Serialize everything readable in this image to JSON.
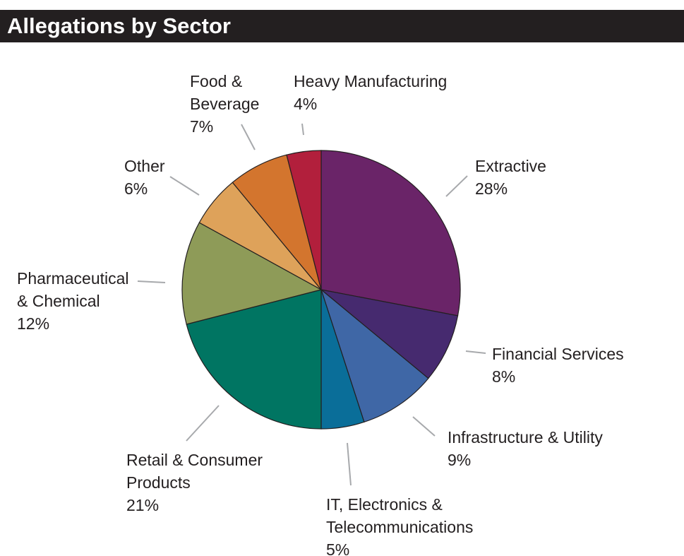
{
  "header": {
    "title": "Allegations by Sector"
  },
  "chart_data": {
    "type": "pie",
    "title": "Allegations by Sector",
    "unit": "%",
    "start_angle_deg": 0,
    "direction": "clockwise",
    "slices": [
      {
        "name": "Extractive",
        "label_lines": [
          "Extractive",
          "28%"
        ],
        "value": 28,
        "color": "#6a2468"
      },
      {
        "name": "Financial Services",
        "label_lines": [
          "Financial Services",
          "8%"
        ],
        "value": 8,
        "color": "#462a6f"
      },
      {
        "name": "Infrastructure & Utility",
        "label_lines": [
          "Infrastructure & Utility",
          "9%"
        ],
        "value": 9,
        "color": "#3f67a6"
      },
      {
        "name": "IT, Electronics & Telecommunications",
        "label_lines": [
          "IT, Electronics &",
          "Telecommunications",
          "5%"
        ],
        "value": 5,
        "color": "#0a6e99"
      },
      {
        "name": "Retail & Consumer Products",
        "label_lines": [
          "Retail & Consumer",
          "Products",
          "21%"
        ],
        "value": 21,
        "color": "#007562"
      },
      {
        "name": "Pharmaceutical & Chemical",
        "label_lines": [
          "Pharmaceutical",
          "& Chemical",
          "12%"
        ],
        "value": 12,
        "color": "#8e9b58"
      },
      {
        "name": "Other",
        "label_lines": [
          "Other",
          "6%"
        ],
        "value": 6,
        "color": "#dea25a"
      },
      {
        "name": "Food & Beverage",
        "label_lines": [
          "Food &",
          "Beverage",
          "7%"
        ],
        "value": 7,
        "color": "#d3752e"
      },
      {
        "name": "Heavy Manufacturing",
        "label_lines": [
          "Heavy Manufacturing",
          "4%"
        ],
        "value": 4,
        "color": "#b21f3c"
      }
    ]
  }
}
